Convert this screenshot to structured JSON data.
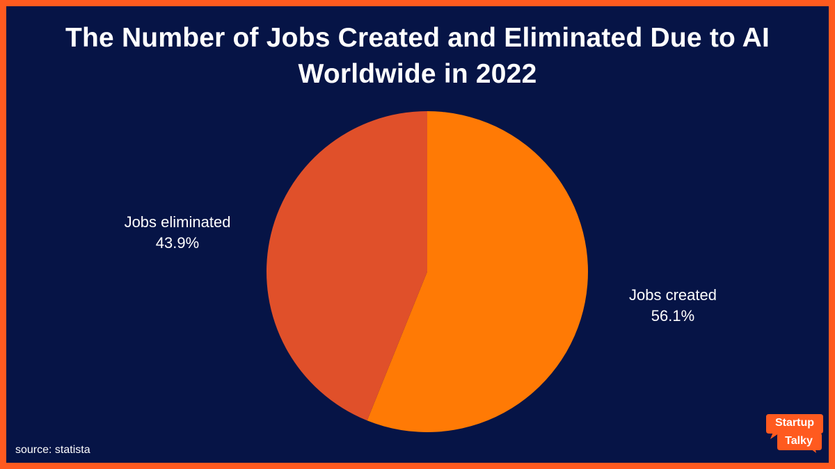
{
  "title": "The Number of Jobs Created and Eliminated Due to AI Worldwide in 2022",
  "source": "source: statista",
  "logo": {
    "line1": "Startup",
    "line2": "Talky"
  },
  "colors": {
    "background": "#061446",
    "border": "#ff5a1f",
    "created": "#ff7a05",
    "eliminated": "#e0502a"
  },
  "chart_data": {
    "type": "pie",
    "title": "The Number of Jobs Created and Eliminated Due to AI Worldwide in 2022",
    "slices": [
      {
        "name": "Jobs created",
        "value": 56.1,
        "label": "56.1%",
        "color": "#ff7a05"
      },
      {
        "name": "Jobs eliminated",
        "value": 43.9,
        "label": "43.9%",
        "color": "#e0502a"
      }
    ],
    "start_angle": "12 o'clock",
    "direction": "clockwise",
    "legend": "none"
  }
}
